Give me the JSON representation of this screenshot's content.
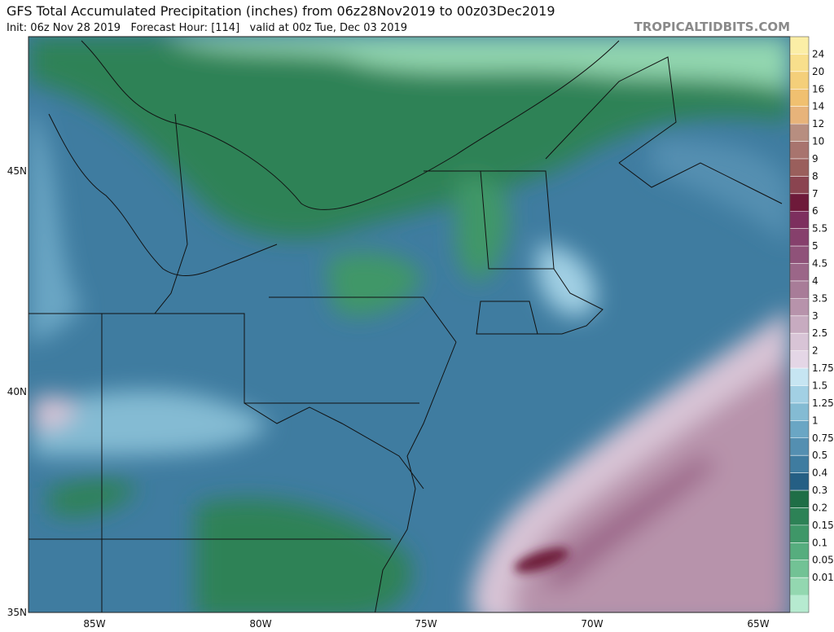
{
  "header": {
    "title": "GFS Total Accumulated Precipitation (inches) from 06z28Nov2019 to 00z03Dec2019",
    "subtitle": "Init: 06z Nov 28 2019   Forecast Hour: [114]   valid at 00z Tue, Dec 03 2019",
    "watermark": "TROPICALTIDBITS.COM"
  },
  "map": {
    "lat_labels": [
      "45N",
      "40N",
      "35N"
    ],
    "lon_labels": [
      "85W",
      "80W",
      "75W",
      "70W",
      "65W"
    ]
  },
  "colorbar": {
    "levels": [
      24,
      20,
      16,
      14,
      12,
      10,
      9,
      8,
      7,
      6,
      5.5,
      5,
      4.5,
      4,
      3.5,
      3,
      2.5,
      2,
      1.75,
      1.5,
      1.25,
      1,
      0.75,
      0.5,
      0.4,
      0.3,
      0.2,
      0.15,
      0.1,
      0.05,
      0.01
    ],
    "colors": [
      "#fbeea6",
      "#f8df8c",
      "#f4cf7a",
      "#f0c070",
      "#e7b37a",
      "#b78e80",
      "#a8746e",
      "#9a5f5c",
      "#8a4450",
      "#6e1a3a",
      "#7d2f5e",
      "#86406c",
      "#8f5279",
      "#9b6688",
      "#a87c98",
      "#b793ab",
      "#c7abc0",
      "#d8c4d6",
      "#e4d6e6",
      "#c6e5f2",
      "#a2d0e4",
      "#84bbd3",
      "#6aa6c4",
      "#548fb1",
      "#3f7ca0",
      "#255f84",
      "#1f6e46",
      "#2d8256",
      "#3f9768",
      "#56ad7e",
      "#72c295",
      "#93d7b0",
      "#b6ead0"
    ]
  }
}
